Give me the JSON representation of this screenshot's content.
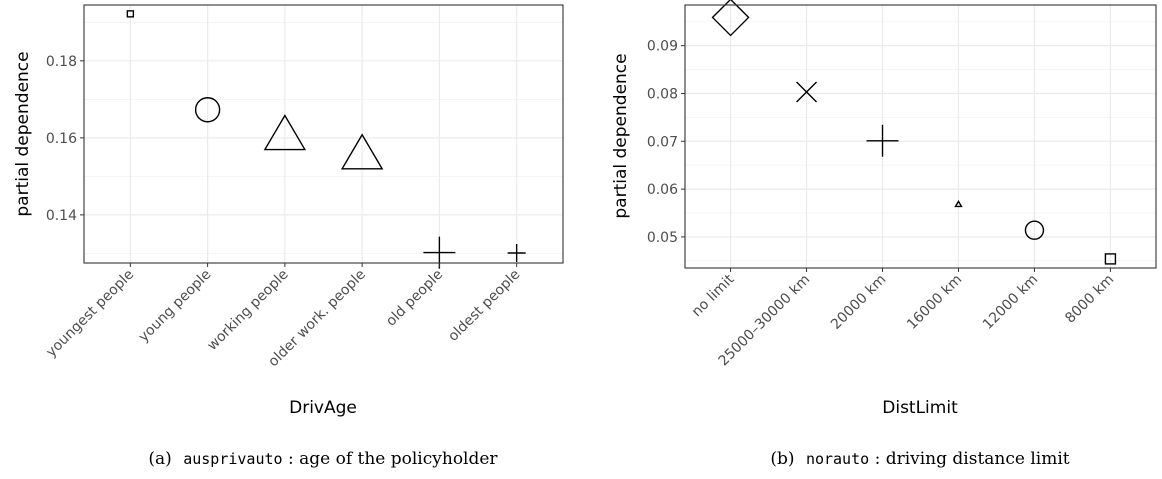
{
  "chart_data": [
    {
      "type": "scatter",
      "caption_label": "(a)",
      "caption_code": "ausprivauto",
      "caption_text": ": age of the policyholder",
      "xlabel": "DrivAge",
      "ylabel": "partial dependence",
      "categories": [
        "youngest people",
        "young people",
        "working people",
        "older work. people",
        "old people",
        "oldest people"
      ],
      "values": [
        0.1922,
        0.1673,
        0.1605,
        0.1555,
        0.1302,
        0.1301
      ],
      "shapes": [
        "square",
        "circle",
        "triangle",
        "triangle",
        "plus",
        "plus"
      ],
      "sizes": [
        3,
        12,
        20,
        20,
        16,
        9
      ],
      "ylim": [
        0.1275,
        0.1945
      ],
      "yticks": [
        0.14,
        0.16,
        0.18
      ],
      "ytick_labels": [
        "0.14",
        "0.16",
        "0.18"
      ],
      "grid": true
    },
    {
      "type": "scatter",
      "caption_label": "(b)",
      "caption_code": "norauto",
      "caption_text": ": driving distance limit",
      "xlabel": "DistLimit",
      "ylabel": "partial dependence",
      "categories": [
        "no limit",
        "25000–30000 km",
        "20000 km",
        "16000 km",
        "12000 km",
        "8000 km"
      ],
      "values": [
        0.0959,
        0.0803,
        0.0701,
        0.0568,
        0.0514,
        0.0454
      ],
      "shapes": [
        "diamond",
        "x",
        "plus",
        "triangle",
        "circle",
        "square"
      ],
      "sizes": [
        18,
        10,
        16,
        3,
        9,
        5
      ],
      "ylim": [
        0.0435,
        0.0985
      ],
      "yticks": [
        0.05,
        0.06,
        0.07,
        0.08,
        0.09
      ],
      "ytick_labels": [
        "0.05",
        "0.06",
        "0.07",
        "0.08",
        "0.09"
      ],
      "grid": true
    }
  ]
}
